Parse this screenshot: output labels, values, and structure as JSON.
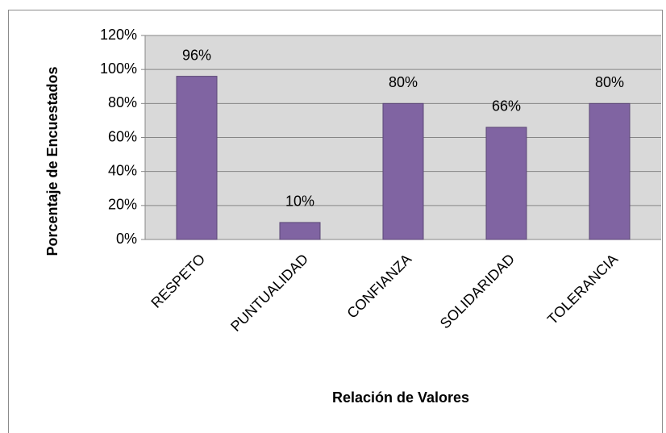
{
  "chart_data": {
    "type": "bar",
    "y_axis_label": "Porcentaje de Encuestados",
    "x_axis_label": "Relación de Valores",
    "categories": [
      "RESPETO",
      "PUNTUALIDAD",
      "CONFIANZA",
      "SOLIDARIDAD",
      "TOLERANCIA"
    ],
    "values": [
      96,
      10,
      80,
      66,
      80
    ],
    "value_labels": [
      "96%",
      "10%",
      "80%",
      "66%",
      "80%"
    ],
    "color": "#8064a2",
    "ylim": [
      0,
      120
    ],
    "yticks": [
      {
        "value": 0,
        "label": "0%"
      },
      {
        "value": 20,
        "label": "20%"
      },
      {
        "value": 40,
        "label": "40%"
      },
      {
        "value": 60,
        "label": "60%"
      },
      {
        "value": 80,
        "label": "80%"
      },
      {
        "value": 100,
        "label": "100%"
      },
      {
        "value": 120,
        "label": "120%"
      }
    ],
    "grid": true
  }
}
